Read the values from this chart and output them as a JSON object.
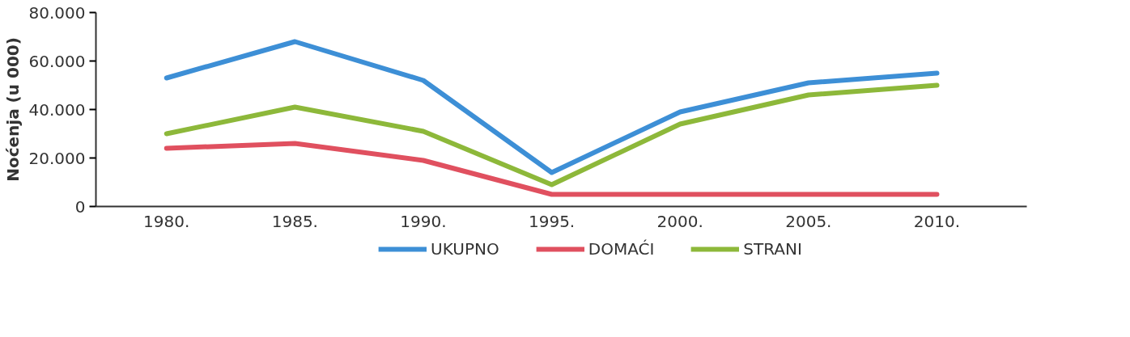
{
  "chart_data": {
    "type": "line",
    "ylabel": "Noćenja (u 000)",
    "categories": [
      "1980.",
      "1985.",
      "1990.",
      "1995.",
      "2000.",
      "2005.",
      "2010."
    ],
    "series": [
      {
        "name": "UKUPNO",
        "color": "#3d8fd6",
        "values": [
          53000,
          68000,
          52000,
          14000,
          39000,
          51000,
          55000
        ]
      },
      {
        "name": "DOMAĆI",
        "color": "#e0505f",
        "values": [
          24000,
          26000,
          19000,
          5000,
          5000,
          5000,
          5000
        ]
      },
      {
        "name": "STRANI",
        "color": "#8db83a",
        "values": [
          30000,
          41000,
          31000,
          9000,
          34000,
          46000,
          50000
        ]
      }
    ],
    "ylim": [
      0,
      80000
    ],
    "yticks": [
      {
        "value": 0,
        "label": "0"
      },
      {
        "value": 20000,
        "label": "20.000"
      },
      {
        "value": 40000,
        "label": "40.000"
      },
      {
        "value": 60000,
        "label": "60.000"
      },
      {
        "value": 80000,
        "label": "80.000"
      }
    ],
    "grid": false,
    "legend": "bottom",
    "marker": "none",
    "line_style": "solid"
  }
}
